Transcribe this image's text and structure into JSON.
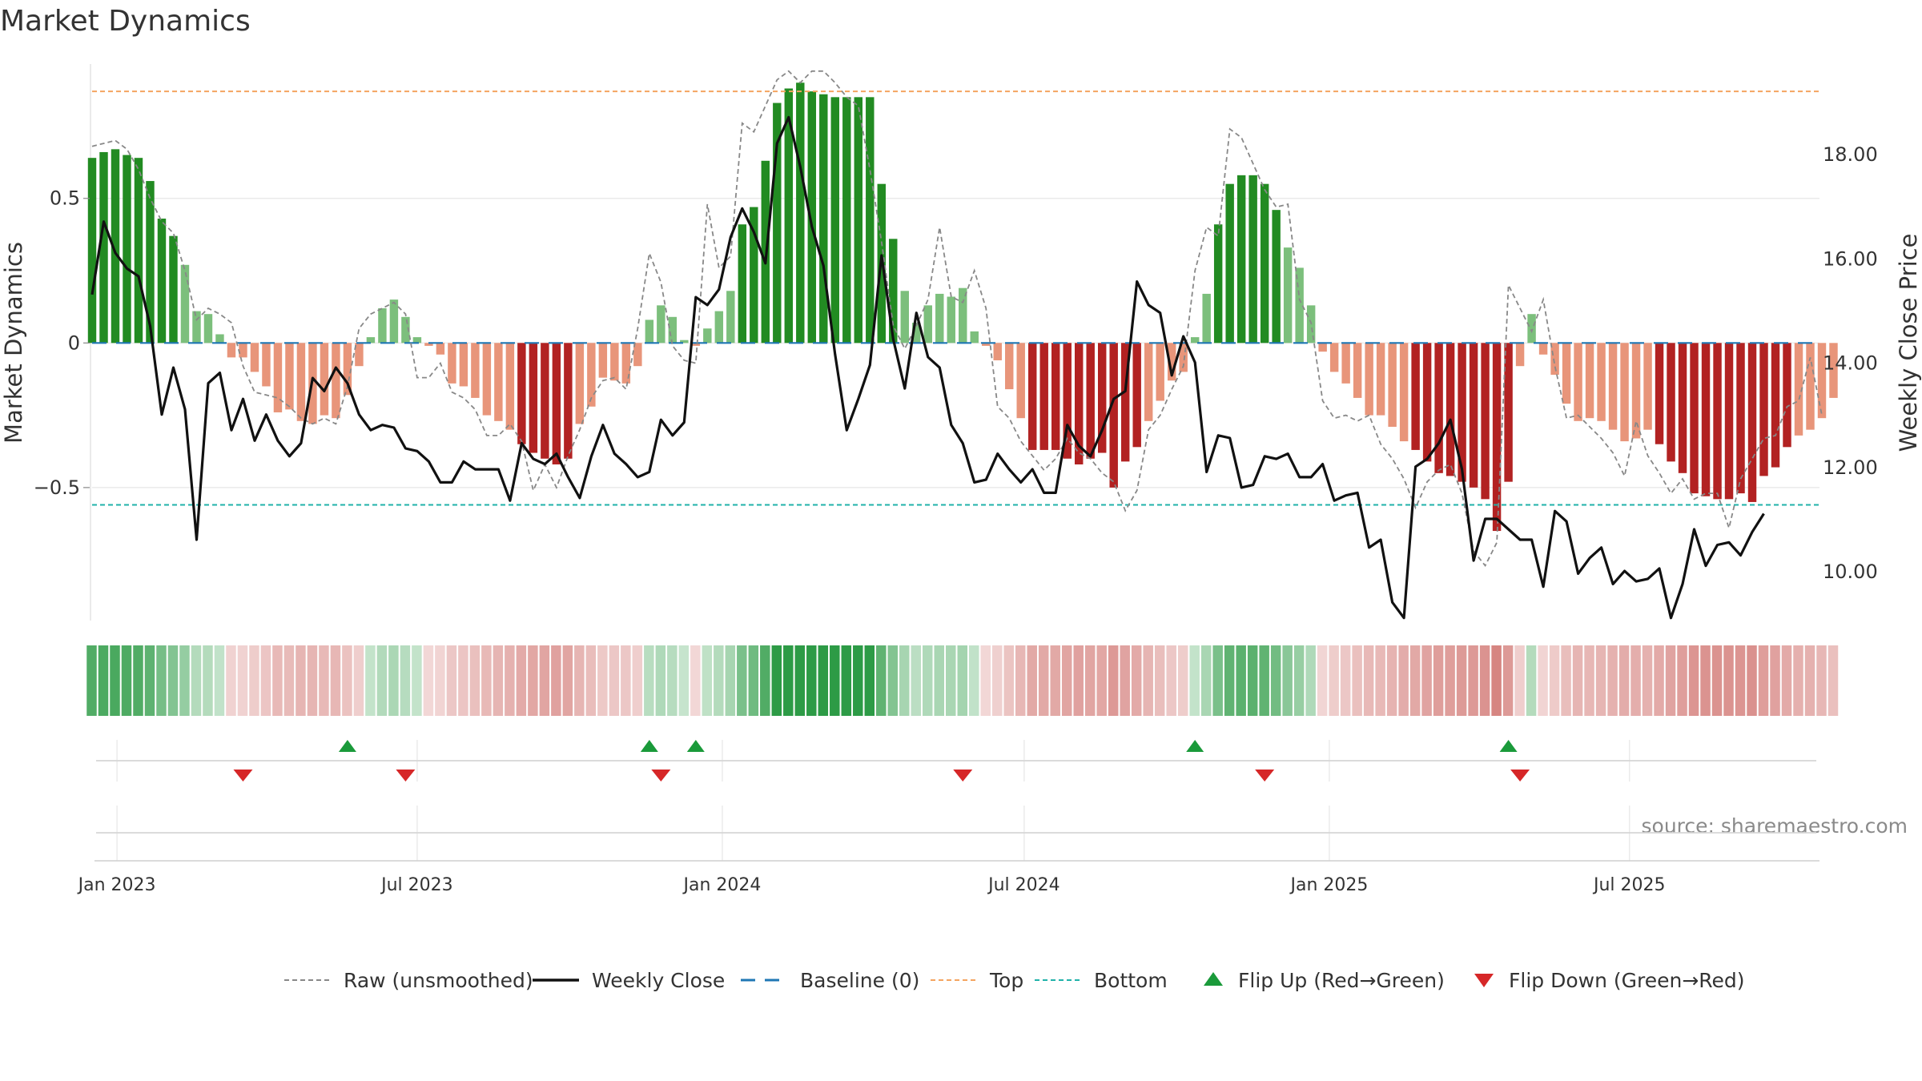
{
  "page_title": "Market Dynamics",
  "source": "source: sharemaestro.com",
  "colors": {
    "strong_green": "#228b22",
    "light_green": "#7cbf7c",
    "strong_red": "#b22222",
    "light_red": "#e8957a",
    "close_line": "#111111",
    "raw_line": "#888888",
    "baseline": "#1f77b4",
    "top_line": "#f4a460",
    "bottom_line": "#20b2aa",
    "flip_up": "#1a9a3a",
    "flip_down": "#d62728"
  },
  "chart_data": {
    "type": "bar",
    "title": "Market Dynamics",
    "xlabel": "",
    "ylabel": "Market Dynamics",
    "y2label": "Weekly Close Price",
    "ylim": [
      -0.96,
      0.97
    ],
    "y2lim": [
      9.05,
      19.75
    ],
    "yticks": [
      -0.5,
      0,
      0.5
    ],
    "ytick_labels": [
      "−0.5",
      "0",
      "0.5"
    ],
    "y2ticks": [
      10,
      12,
      14,
      16,
      18
    ],
    "y2tick_labels": [
      "10.00",
      "12.00",
      "14.00",
      "16.00",
      "18.00"
    ],
    "x_ticks": [
      "2023-01-01",
      "2023-07-01",
      "2024-01-01",
      "2024-07-01",
      "2025-01-01",
      "2025-07-01"
    ],
    "x_tick_labels": [
      "Jan 2023",
      "Jul 2023",
      "Jan 2024",
      "Jul 2024",
      "Jan 2025",
      "Jul 2025"
    ],
    "x_range": [
      "2022-12-17",
      "2025-10-25"
    ],
    "first_week": "2022-12-17",
    "week_step_days": 7,
    "top_level": 0.87,
    "bottom_level": -0.56,
    "baseline_level": 0,
    "grid": true,
    "legend_position": "bottom-center",
    "momentum": [
      0.64,
      0.66,
      0.67,
      0.65,
      0.64,
      0.56,
      0.43,
      0.37,
      0.27,
      0.11,
      0.1,
      0.03,
      -0.05,
      -0.05,
      -0.1,
      -0.15,
      -0.24,
      -0.23,
      -0.27,
      -0.28,
      -0.25,
      -0.26,
      -0.18,
      -0.08,
      0.02,
      0.12,
      0.15,
      0.09,
      0.02,
      -0.01,
      -0.04,
      -0.14,
      -0.15,
      -0.19,
      -0.25,
      -0.27,
      -0.3,
      -0.35,
      -0.38,
      -0.4,
      -0.42,
      -0.4,
      -0.28,
      -0.22,
      -0.12,
      -0.13,
      -0.14,
      -0.08,
      0.08,
      0.13,
      0.09,
      0.01,
      -0.01,
      0.05,
      0.11,
      0.18,
      0.41,
      0.47,
      0.63,
      0.83,
      0.88,
      0.9,
      0.87,
      0.86,
      0.85,
      0.85,
      0.85,
      0.85,
      0.55,
      0.36,
      0.18,
      0.07,
      0.13,
      0.17,
      0.16,
      0.19,
      0.04,
      -0.01,
      -0.06,
      -0.16,
      -0.26,
      -0.37,
      -0.37,
      -0.37,
      -0.4,
      -0.42,
      -0.4,
      -0.38,
      -0.5,
      -0.41,
      -0.36,
      -0.27,
      -0.2,
      -0.13,
      -0.1,
      0.02,
      0.17,
      0.41,
      0.55,
      0.58,
      0.58,
      0.55,
      0.46,
      0.33,
      0.26,
      0.13,
      -0.03,
      -0.1,
      -0.14,
      -0.19,
      -0.25,
      -0.25,
      -0.29,
      -0.34,
      -0.37,
      -0.41,
      -0.45,
      -0.46,
      -0.48,
      -0.5,
      -0.54,
      -0.65,
      -0.48,
      -0.08,
      0.1,
      -0.04,
      -0.11,
      -0.21,
      -0.27,
      -0.26,
      -0.27,
      -0.3,
      -0.34,
      -0.33,
      -0.3,
      -0.35,
      -0.41,
      -0.45,
      -0.52,
      -0.53,
      -0.54,
      -0.54,
      -0.52,
      -0.55,
      -0.46,
      -0.43,
      -0.36,
      -0.32,
      -0.3,
      -0.26,
      -0.19
    ],
    "strong_weak_cutoff": 0.35,
    "raw": [
      0.68,
      0.69,
      0.7,
      0.67,
      0.6,
      0.5,
      0.42,
      0.38,
      0.25,
      0.08,
      0.12,
      0.1,
      0.07,
      -0.08,
      -0.17,
      -0.18,
      -0.19,
      -0.22,
      -0.26,
      -0.28,
      -0.26,
      -0.28,
      -0.15,
      0.05,
      0.1,
      0.12,
      0.14,
      0.1,
      -0.12,
      -0.12,
      -0.07,
      -0.17,
      -0.19,
      -0.23,
      -0.32,
      -0.32,
      -0.28,
      -0.34,
      -0.51,
      -0.42,
      -0.5,
      -0.39,
      -0.3,
      -0.19,
      -0.13,
      -0.12,
      -0.16,
      0.05,
      0.31,
      0.21,
      -0.01,
      -0.06,
      -0.07,
      0.48,
      0.26,
      0.3,
      0.76,
      0.73,
      0.82,
      0.91,
      0.94,
      0.9,
      0.94,
      0.94,
      0.9,
      0.85,
      0.82,
      0.6,
      0.35,
      0.06,
      -0.02,
      0.06,
      0.15,
      0.4,
      0.16,
      0.14,
      0.25,
      0.12,
      -0.22,
      -0.26,
      -0.34,
      -0.39,
      -0.44,
      -0.4,
      -0.33,
      -0.38,
      -0.4,
      -0.45,
      -0.48,
      -0.58,
      -0.51,
      -0.3,
      -0.25,
      -0.16,
      -0.08,
      0.25,
      0.4,
      0.37,
      0.74,
      0.71,
      0.62,
      0.53,
      0.47,
      0.48,
      0.15,
      0.07,
      -0.2,
      -0.26,
      -0.25,
      -0.27,
      -0.25,
      -0.35,
      -0.4,
      -0.47,
      -0.57,
      -0.48,
      -0.44,
      -0.42,
      -0.52,
      -0.72,
      -0.77,
      -0.69,
      0.2,
      0.12,
      0.04,
      0.15,
      -0.08,
      -0.26,
      -0.25,
      -0.29,
      -0.33,
      -0.38,
      -0.46,
      -0.27,
      -0.39,
      -0.45,
      -0.52,
      -0.47,
      -0.54,
      -0.52,
      -0.52,
      -0.64,
      -0.47,
      -0.4,
      -0.33,
      -0.32,
      -0.22,
      -0.2,
      -0.05,
      -0.25
    ],
    "close": [
      15.3,
      16.7,
      16.1,
      15.8,
      15.65,
      14.7,
      13.0,
      13.9,
      13.1,
      10.6,
      13.6,
      13.8,
      12.7,
      13.3,
      12.5,
      13.0,
      12.5,
      12.2,
      12.45,
      13.7,
      13.45,
      13.9,
      13.6,
      13.0,
      12.7,
      12.8,
      12.75,
      12.35,
      12.3,
      12.1,
      11.7,
      11.7,
      12.1,
      11.95,
      11.95,
      11.95,
      11.35,
      12.45,
      12.15,
      12.05,
      12.25,
      11.8,
      11.4,
      12.2,
      12.8,
      12.25,
      12.05,
      11.8,
      11.9,
      12.9,
      12.6,
      12.85,
      15.25,
      15.1,
      15.4,
      16.4,
      16.95,
      16.5,
      15.9,
      18.2,
      18.7,
      17.75,
      16.6,
      15.85,
      14.15,
      12.7,
      13.3,
      13.95,
      16.05,
      14.45,
      13.5,
      14.95,
      14.1,
      13.9,
      12.8,
      12.45,
      11.7,
      11.75,
      12.25,
      11.95,
      11.7,
      11.95,
      11.5,
      11.5,
      12.8,
      12.4,
      12.2,
      12.7,
      13.3,
      13.45,
      15.55,
      15.1,
      14.95,
      13.75,
      14.5,
      14.0,
      11.9,
      12.6,
      12.55,
      11.6,
      11.65,
      12.2,
      12.15,
      12.25,
      11.8,
      11.8,
      12.05,
      11.35,
      11.45,
      11.5,
      10.45,
      10.6,
      9.4,
      9.1,
      12.0,
      12.15,
      12.45,
      12.9,
      11.95,
      10.2,
      11.0,
      11.0,
      10.8,
      10.6,
      10.6,
      9.7,
      11.15,
      10.95,
      9.95,
      10.25,
      10.45,
      9.75,
      10.0,
      9.8,
      9.85,
      10.05,
      9.1,
      9.75,
      10.8,
      10.1,
      10.5,
      10.55,
      10.3,
      10.75,
      11.1
    ],
    "flip_up_weeks": [
      22,
      48,
      52,
      95,
      122
    ],
    "flip_down_weeks": [
      13,
      27,
      49,
      75,
      101,
      123
    ],
    "legend": [
      {
        "label": "Raw (unsmoothed)",
        "style": "raw"
      },
      {
        "label": "Weekly Close",
        "style": "close"
      },
      {
        "label": "Baseline (0)",
        "style": "baseline"
      },
      {
        "label": "Top",
        "style": "top"
      },
      {
        "label": "Bottom",
        "style": "bottom"
      },
      {
        "label": "Flip Up (Red→Green)",
        "style": "up"
      },
      {
        "label": "Flip Down (Green→Red)",
        "style": "down"
      }
    ]
  }
}
